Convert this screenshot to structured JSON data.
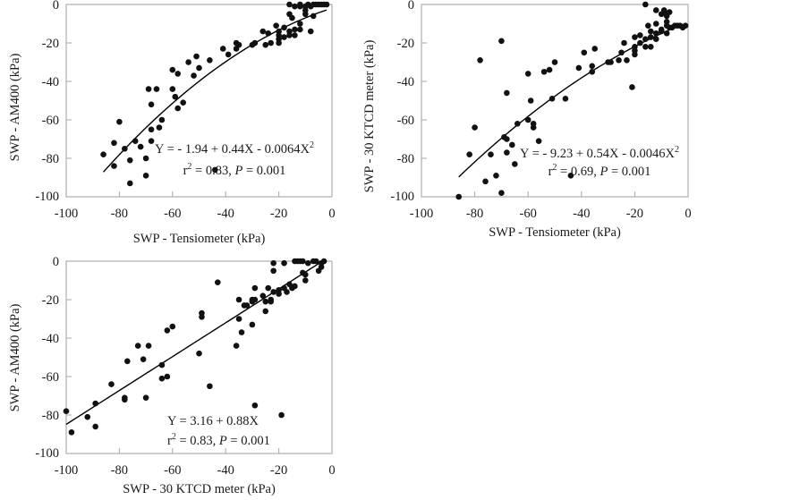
{
  "chart_data": [
    {
      "type": "scatter",
      "id": "tensiometer-vs-am400",
      "xlabel": "SWP - Tensiometer (kPa)",
      "ylabel": "SWP - AM400 (kPa)",
      "xlim": [
        -100,
        0
      ],
      "ylim": [
        -100,
        0
      ],
      "xticks": [
        "-100",
        "-80",
        "-60",
        "-40",
        "-20",
        "0"
      ],
      "yticks": [
        "0",
        "-20",
        "-40",
        "-60",
        "-80",
        "-100"
      ],
      "grid": false,
      "equation": {
        "line1": "Y = - 1.94 + 0.44X - 0.0064X",
        "sup1": "2",
        "r": "r",
        "sup2": "2",
        "line2a": " = 0.83, ",
        "P": "P",
        "line2b": " = 0.001"
      },
      "fit": {
        "kind": "quadratic",
        "coef": [
          -1.94,
          0.44,
          -0.0064
        ],
        "xrange": [
          -86,
          -2
        ]
      },
      "points": [
        [
          -86,
          -78
        ],
        [
          -82,
          -72
        ],
        [
          -82,
          -84
        ],
        [
          -80,
          -61
        ],
        [
          -78,
          -75
        ],
        [
          -76,
          -81
        ],
        [
          -76,
          -93
        ],
        [
          -74,
          -71
        ],
        [
          -72,
          -74
        ],
        [
          -70,
          -80
        ],
        [
          -70,
          -89
        ],
        [
          -69,
          -44
        ],
        [
          -68,
          -52
        ],
        [
          -68,
          -65
        ],
        [
          -68,
          -71
        ],
        [
          -66,
          -44
        ],
        [
          -65,
          -64
        ],
        [
          -64,
          -60
        ],
        [
          -60,
          -34
        ],
        [
          -60,
          -44
        ],
        [
          -59,
          -48
        ],
        [
          -58,
          -36
        ],
        [
          -58,
          -54
        ],
        [
          -56,
          -51
        ],
        [
          -54,
          -30
        ],
        [
          -52,
          -37
        ],
        [
          -51,
          -27
        ],
        [
          -50,
          -33
        ],
        [
          -46,
          -29
        ],
        [
          -44,
          -86
        ],
        [
          -41,
          -23
        ],
        [
          -39,
          -26
        ],
        [
          -36,
          -20
        ],
        [
          -36,
          -23
        ],
        [
          -35,
          -21
        ],
        [
          -30,
          -21
        ],
        [
          -29,
          -20
        ],
        [
          -26,
          -14
        ],
        [
          -25,
          -21
        ],
        [
          -24,
          -15
        ],
        [
          -23,
          -20
        ],
        [
          -21,
          -11
        ],
        [
          -20,
          -14
        ],
        [
          -20,
          -16
        ],
        [
          -20,
          -18
        ],
        [
          -20,
          -20
        ],
        [
          -18,
          -12
        ],
        [
          -18,
          -17
        ],
        [
          -16,
          -5
        ],
        [
          -16,
          -14
        ],
        [
          -16,
          -16
        ],
        [
          -15,
          -7
        ],
        [
          -14,
          -13
        ],
        [
          -14,
          -16
        ],
        [
          -12,
          -10
        ],
        [
          -12,
          -13
        ],
        [
          -16,
          0
        ],
        [
          -14,
          -1
        ],
        [
          -12,
          -1
        ],
        [
          -12,
          0
        ],
        [
          -10,
          -1
        ],
        [
          -10,
          -3
        ],
        [
          -10,
          -5
        ],
        [
          -9,
          0
        ],
        [
          -8,
          -1
        ],
        [
          -8,
          -14
        ],
        [
          -7,
          -6
        ],
        [
          -7,
          0
        ],
        [
          -6,
          0
        ],
        [
          -5,
          0
        ],
        [
          -4,
          0
        ],
        [
          -3,
          0
        ],
        [
          -2,
          0
        ]
      ]
    },
    {
      "type": "scatter",
      "id": "tensiometer-vs-ktcd",
      "xlabel": "SWP - Tensiometer (kPa)",
      "ylabel": "SWP - 30 KTCD meter (kPa)",
      "xlim": [
        -100,
        0
      ],
      "ylim": [
        -100,
        0
      ],
      "xticks": [
        "-100",
        "-80",
        "-60",
        "-40",
        "-20",
        "0"
      ],
      "yticks": [
        "0",
        "-20",
        "-40",
        "-60",
        "-80",
        "-100"
      ],
      "grid": false,
      "equation": {
        "line1": "Y = - 9.23 + 0.54X - 0.0046X",
        "sup1": "2",
        "r": "r",
        "sup2": "2",
        "line2a": " = 0.69, ",
        "P": "P",
        "line2b": " = 0.001"
      },
      "fit": {
        "kind": "quadratic",
        "coef": [
          -9.23,
          0.54,
          -0.0046
        ],
        "xrange": [
          -86,
          -2
        ]
      },
      "points": [
        [
          -86,
          -100
        ],
        [
          -82,
          -78
        ],
        [
          -80,
          -64
        ],
        [
          -78,
          -29
        ],
        [
          -76,
          -92
        ],
        [
          -74,
          -78
        ],
        [
          -72,
          -89
        ],
        [
          -70,
          -98
        ],
        [
          -70,
          -19
        ],
        [
          -69,
          -69
        ],
        [
          -68,
          -70
        ],
        [
          -68,
          -77
        ],
        [
          -68,
          -46
        ],
        [
          -66,
          -73
        ],
        [
          -65,
          -83
        ],
        [
          -64,
          -62
        ],
        [
          -60,
          -36
        ],
        [
          -60,
          -60
        ],
        [
          -59,
          -50
        ],
        [
          -58,
          -62
        ],
        [
          -58,
          -64
        ],
        [
          -56,
          -71
        ],
        [
          -54,
          -35
        ],
        [
          -52,
          -34
        ],
        [
          -51,
          -49
        ],
        [
          -50,
          -30
        ],
        [
          -46,
          -49
        ],
        [
          -44,
          -89
        ],
        [
          -41,
          -33
        ],
        [
          -39,
          -25
        ],
        [
          -36,
          -32
        ],
        [
          -36,
          -35
        ],
        [
          -35,
          -23
        ],
        [
          -30,
          -30
        ],
        [
          -29,
          -30
        ],
        [
          -26,
          -29
        ],
        [
          -25,
          -25
        ],
        [
          -24,
          -20
        ],
        [
          -23,
          -29
        ],
        [
          -21,
          -43
        ],
        [
          -20,
          -17
        ],
        [
          -20,
          -22
        ],
        [
          -20,
          -24
        ],
        [
          -20,
          -26
        ],
        [
          -18,
          -16
        ],
        [
          -18,
          -20
        ],
        [
          -16,
          0
        ],
        [
          -16,
          -18
        ],
        [
          -16,
          -22
        ],
        [
          -15,
          -11
        ],
        [
          -14,
          -14
        ],
        [
          -14,
          -17
        ],
        [
          -14,
          -22
        ],
        [
          -12,
          -3
        ],
        [
          -12,
          -10
        ],
        [
          -12,
          -15
        ],
        [
          -12,
          -18
        ],
        [
          -10,
          -5
        ],
        [
          -10,
          -13
        ],
        [
          -10,
          -14
        ],
        [
          -9,
          -3
        ],
        [
          -9,
          -4
        ],
        [
          -8,
          -6
        ],
        [
          -8,
          -9
        ],
        [
          -8,
          -11
        ],
        [
          -8,
          -15
        ],
        [
          -7,
          -4
        ],
        [
          -7,
          -12
        ],
        [
          -6,
          -12
        ],
        [
          -5,
          -11
        ],
        [
          -4,
          -11
        ],
        [
          -3,
          -11
        ],
        [
          -2,
          -12
        ],
        [
          -1,
          -11
        ]
      ]
    },
    {
      "type": "scatter",
      "id": "ktcd-vs-am400",
      "xlabel": "SWP - 30 KTCD meter (kPa)",
      "ylabel": "SWP - AM400 (kPa)",
      "xlim": [
        -100,
        0
      ],
      "ylim": [
        -100,
        0
      ],
      "xticks": [
        "-100",
        "-80",
        "-60",
        "-40",
        "-20",
        "0"
      ],
      "yticks": [
        "0",
        "-20",
        "-40",
        "-60",
        "-80",
        "-100"
      ],
      "grid": false,
      "equation": {
        "line1": "Y = 3.16 + 0.88X",
        "sup1": "",
        "r": "r",
        "sup2": "2",
        "line2a": " = 0.83, ",
        "P": "P",
        "line2b": " = 0.001"
      },
      "fit": {
        "kind": "linear",
        "coef": [
          3.16,
          0.88,
          0
        ],
        "xrange": [
          -100,
          -3.6
        ]
      },
      "points": [
        [
          -100,
          -78
        ],
        [
          -98,
          -89
        ],
        [
          -92,
          -81
        ],
        [
          -89,
          -74
        ],
        [
          -89,
          -86
        ],
        [
          -83,
          -64
        ],
        [
          -78,
          -71
        ],
        [
          -78,
          -72
        ],
        [
          -77,
          -52
        ],
        [
          -73,
          -44
        ],
        [
          -71,
          -51
        ],
        [
          -70,
          -71
        ],
        [
          -69,
          -44
        ],
        [
          -64,
          -54
        ],
        [
          -64,
          -61
        ],
        [
          -62,
          -36
        ],
        [
          -62,
          -60
        ],
        [
          -60,
          -34
        ],
        [
          -50,
          -48
        ],
        [
          -49,
          -27
        ],
        [
          -49,
          -29
        ],
        [
          -46,
          -65
        ],
        [
          -43,
          -11
        ],
        [
          -36,
          -44
        ],
        [
          -35,
          -20
        ],
        [
          -35,
          -30
        ],
        [
          -34,
          -37
        ],
        [
          -33,
          -23
        ],
        [
          -32,
          -23
        ],
        [
          -30,
          -20
        ],
        [
          -30,
          -21
        ],
        [
          -30,
          -33
        ],
        [
          -29,
          -14
        ],
        [
          -29,
          -20
        ],
        [
          -29,
          -75
        ],
        [
          -26,
          -18
        ],
        [
          -25,
          -21
        ],
        [
          -25,
          -26
        ],
        [
          -24,
          -14
        ],
        [
          -23,
          -20
        ],
        [
          -23,
          -21
        ],
        [
          -22,
          -1
        ],
        [
          -22,
          -5
        ],
        [
          -22,
          -16
        ],
        [
          -20,
          -15
        ],
        [
          -20,
          -17
        ],
        [
          -19,
          -80
        ],
        [
          -18,
          -1
        ],
        [
          -18,
          -14
        ],
        [
          -17,
          -16
        ],
        [
          -16,
          -12
        ],
        [
          -15,
          -14
        ],
        [
          -14,
          -13
        ],
        [
          -14,
          0
        ],
        [
          -13,
          0
        ],
        [
          -12,
          0
        ],
        [
          -11,
          0
        ],
        [
          -11,
          -6
        ],
        [
          -10,
          -7
        ],
        [
          -10,
          -10
        ],
        [
          -9,
          -1
        ],
        [
          -7,
          0
        ],
        [
          -6,
          0
        ],
        [
          -5,
          -5
        ],
        [
          -4,
          -3
        ],
        [
          -4,
          -1
        ],
        [
          -3,
          0
        ]
      ]
    }
  ],
  "colors": {
    "axis": "#b3b3b3",
    "marker": "#111111",
    "text": "#1a1a1a"
  }
}
